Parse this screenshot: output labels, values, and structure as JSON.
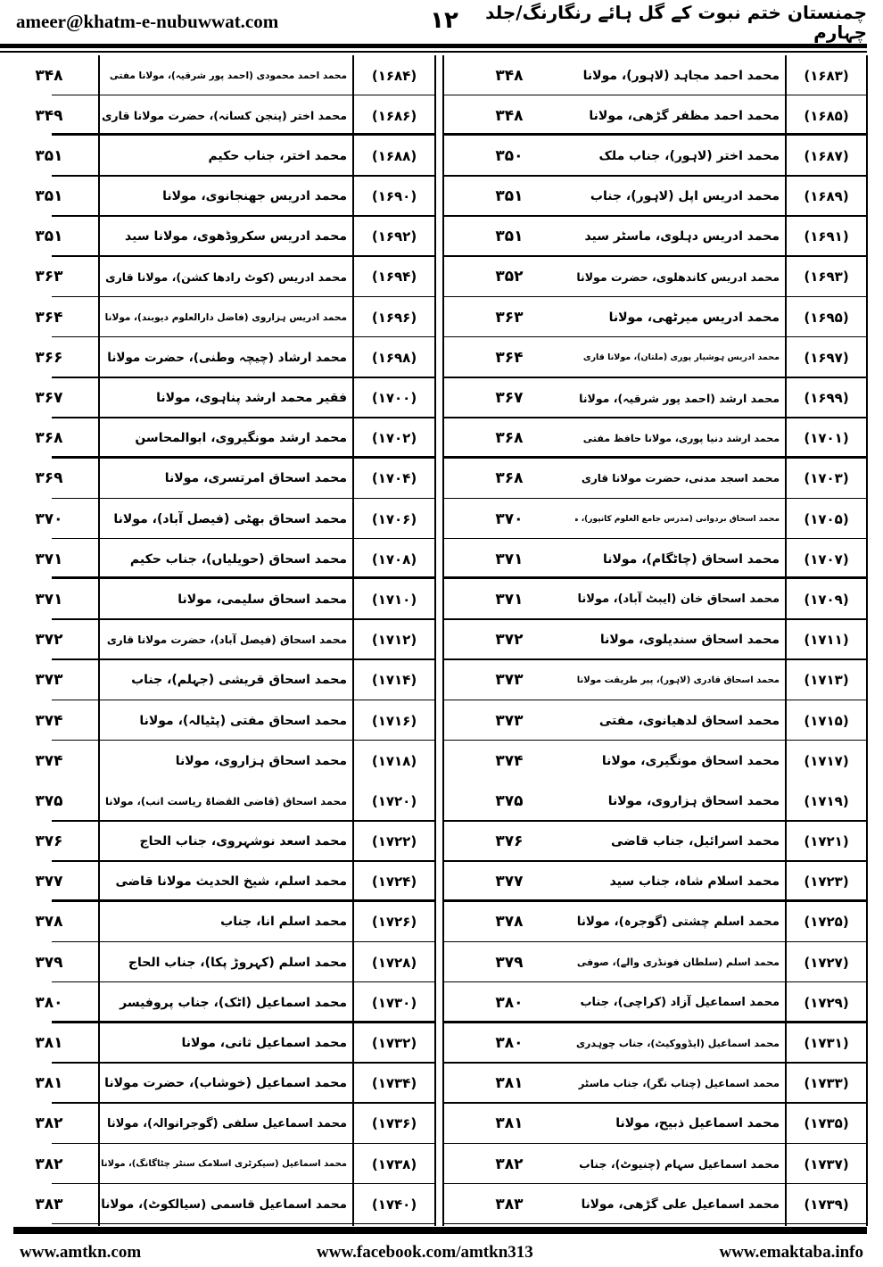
{
  "header": {
    "email": "ameer@khatm-e-nubuwwat.com",
    "page_number": "۱۲",
    "title": "چمنستان ختم نبوت کے گل ہائے رنگارنگ/جلد چہارم"
  },
  "rows": [
    {
      "right": {
        "num": "(۱۶۸۳)",
        "name": "محمد احمد مجاہد (لاہور)، مولانا",
        "page": "۳۴۸"
      },
      "left": {
        "num": "(۱۶۸۴)",
        "name": "محمد احمد محمودی (احمد پور شرقیہ)، مولانا مفتی",
        "page": "۳۴۸"
      }
    },
    {
      "right": {
        "num": "(۱۶۸۵)",
        "name": "محمد احمد مظفر گڑھی، مولانا",
        "page": "۳۴۸"
      },
      "left": {
        "num": "(۱۶۸۶)",
        "name": "محمد اختر (پنجن کسانہ)، حضرت مولانا قاری",
        "page": "۳۴۹"
      }
    },
    {
      "right": {
        "num": "(۱۶۸۷)",
        "name": "محمد اختر (لاہور)، جناب ملک",
        "page": "۳۵۰"
      },
      "left": {
        "num": "(۱۶۸۸)",
        "name": "محمد اختر، جناب حکیم",
        "page": "۳۵۱"
      }
    },
    {
      "right": {
        "num": "(۱۶۸۹)",
        "name": "محمد ادریس اپل (لاہور)، جناب",
        "page": "۳۵۱"
      },
      "left": {
        "num": "(۱۶۹۰)",
        "name": "محمد ادریس جھنجانوی، مولانا",
        "page": "۳۵۱"
      }
    },
    {
      "right": {
        "num": "(۱۶۹۱)",
        "name": "محمد ادریس دہلوی، ماسٹر سید",
        "page": "۳۵۱"
      },
      "left": {
        "num": "(۱۶۹۲)",
        "name": "محمد ادریس سکروڈھوی، مولانا سید",
        "page": "۳۵۱"
      }
    },
    {
      "right": {
        "num": "(۱۶۹۳)",
        "name": "محمد ادریس کاندھلوی، حضرت مولانا",
        "page": "۳۵۲"
      },
      "left": {
        "num": "(۱۶۹۴)",
        "name": "محمد ادریس (کوٹ رادھا کشن)، مولانا قاری",
        "page": "۳۶۳"
      }
    },
    {
      "right": {
        "num": "(۱۶۹۵)",
        "name": "محمد ادریس میرٹھی، مولانا",
        "page": "۳۶۳"
      },
      "left": {
        "num": "(۱۶۹۶)",
        "name": "محمد ادریس ہزاروی (فاضل دارالعلوم دیوبند)، مولانا",
        "page": "۳۶۴"
      }
    },
    {
      "right": {
        "num": "(۱۶۹۷)",
        "name": "محمد ادریس ہوشیار پوری (ملتان)، مولانا قاری",
        "page": "۳۶۴"
      },
      "left": {
        "num": "(۱۶۹۸)",
        "name": "محمد ارشاد (چیچہ وطنی)، حضرت مولانا",
        "page": "۳۶۶"
      }
    },
    {
      "right": {
        "num": "(۱۶۹۹)",
        "name": "محمد ارشد (احمد پور شرقیہ)، مولانا",
        "page": "۳۶۷"
      },
      "left": {
        "num": "(۱۷۰۰)",
        "name": "فقیر محمد ارشد پناہوی، مولانا",
        "page": "۳۶۷"
      }
    },
    {
      "right": {
        "num": "(۱۷۰۱)",
        "name": "محمد ارشد دنیا پوری، مولانا حافظ مفتی",
        "page": "۳۶۸"
      },
      "left": {
        "num": "(۱۷۰۲)",
        "name": "محمد ارشد مونگیروی، ابوالمحاسن",
        "page": "۳۶۸"
      }
    },
    {
      "right": {
        "num": "(۱۷۰۳)",
        "name": "محمد اسجد مدنی، حضرت مولانا قاری",
        "page": "۳۶۸"
      },
      "left": {
        "num": "(۱۷۰۴)",
        "name": "محمد اسحاق امرتسری، مولانا",
        "page": "۳۶۹"
      }
    },
    {
      "right": {
        "num": "(۱۷۰۵)",
        "name": "محمد اسحاق بردوانی (مدرس جامع العلوم کانپور)، مولانا",
        "page": "۳۷۰"
      },
      "left": {
        "num": "(۱۷۰۶)",
        "name": "محمد اسحاق بھٹی (فیصل آباد)، مولانا",
        "page": "۳۷۰"
      }
    },
    {
      "right": {
        "num": "(۱۷۰۷)",
        "name": "محمد اسحاق (چاٹگام)، مولانا",
        "page": "۳۷۱"
      },
      "left": {
        "num": "(۱۷۰۸)",
        "name": "محمد اسحاق (حویلیاں)، جناب حکیم",
        "page": "۳۷۱"
      }
    },
    {
      "right": {
        "num": "(۱۷۰۹)",
        "name": "محمد اسحاق خان (ایبٹ آباد)، مولانا",
        "page": "۳۷۱"
      },
      "left": {
        "num": "(۱۷۱۰)",
        "name": "محمد اسحاق سلیمی، مولانا",
        "page": "۳۷۱"
      }
    },
    {
      "right": {
        "num": "(۱۷۱۱)",
        "name": "محمد اسحاق سندیلوی، مولانا",
        "page": "۳۷۲"
      },
      "left": {
        "num": "(۱۷۱۲)",
        "name": "محمد اسحاق (فیصل آباد)، حضرت مولانا قاری",
        "page": "۳۷۲"
      }
    },
    {
      "right": {
        "num": "(۱۷۱۳)",
        "name": "محمد اسحاق قادری (لاہور)، پیر طریقت مولانا",
        "page": "۳۷۳"
      },
      "left": {
        "num": "(۱۷۱۴)",
        "name": "محمد اسحاق قریشی (جہلم)، جناب",
        "page": "۳۷۳"
      }
    },
    {
      "right": {
        "num": "(۱۷۱۵)",
        "name": "محمد اسحاق لدھیانوی، مفتی",
        "page": "۳۷۳"
      },
      "left": {
        "num": "(۱۷۱۶)",
        "name": "محمد اسحاق مفتی (پٹیالہ)، مولانا",
        "page": "۳۷۴"
      }
    },
    {
      "right": {
        "num": "(۱۷۱۷)",
        "name": "محمد اسحاق مونگیری، مولانا",
        "page": "۳۷۴"
      },
      "left": {
        "num": "(۱۷۱۸)",
        "name": "محمد اسحاق ہزاروی، مولانا",
        "page": "۳۷۴"
      }
    },
    {
      "right": {
        "num": "(۱۷۱۹)",
        "name": "محمد اسحاق ہزاروی، مولانا",
        "page": "۳۷۵"
      },
      "left": {
        "num": "(۱۷۲۰)",
        "name": "محمد اسحاق (قاضی القضاۃ ریاست انب)، مولانا",
        "page": "۳۷۵"
      }
    },
    {
      "right": {
        "num": "(۱۷۲۱)",
        "name": "محمد اسرائیل، جناب قاضی",
        "page": "۳۷۶"
      },
      "left": {
        "num": "(۱۷۲۲)",
        "name": "محمد اسعد نوشہروی، جناب الحاج",
        "page": "۳۷۶"
      }
    },
    {
      "right": {
        "num": "(۱۷۲۳)",
        "name": "محمد اسلام شاہ، جناب سید",
        "page": "۳۷۷"
      },
      "left": {
        "num": "(۱۷۲۴)",
        "name": "محمد اسلم، شیخ الحدیث مولانا قاضی",
        "page": "۳۷۷"
      }
    },
    {
      "right": {
        "num": "(۱۷۲۵)",
        "name": "محمد اسلم چشتی (گوجرہ)، مولانا",
        "page": "۳۷۸"
      },
      "left": {
        "num": "(۱۷۲۶)",
        "name": "محمد اسلم انا، جناب",
        "page": "۳۷۸"
      }
    },
    {
      "right": {
        "num": "(۱۷۲۷)",
        "name": "محمد اسلم (سلطان فونڈری والے)، صوفی",
        "page": "۳۷۹"
      },
      "left": {
        "num": "(۱۷۲۸)",
        "name": "محمد اسلم (کہروڑ پکا)، جناب الحاج",
        "page": "۳۷۹"
      }
    },
    {
      "right": {
        "num": "(۱۷۲۹)",
        "name": "محمد اسماعیل آزاد (کراچی)، جناب",
        "page": "۳۸۰"
      },
      "left": {
        "num": "(۱۷۳۰)",
        "name": "محمد اسماعیل (اٹک)، جناب پروفیسر",
        "page": "۳۸۰"
      }
    },
    {
      "right": {
        "num": "(۱۷۳۱)",
        "name": "محمد اسماعیل (ایڈووکیٹ)، جناب چوہدری",
        "page": "۳۸۰"
      },
      "left": {
        "num": "(۱۷۳۲)",
        "name": "محمد اسماعیل ثانی، مولانا",
        "page": "۳۸۱"
      }
    },
    {
      "right": {
        "num": "(۱۷۳۳)",
        "name": "محمد اسماعیل (چناب نگر)، جناب ماسٹر",
        "page": "۳۸۱"
      },
      "left": {
        "num": "(۱۷۳۴)",
        "name": "محمد اسماعیل (خوشاب)، حضرت مولانا",
        "page": "۳۸۱"
      }
    },
    {
      "right": {
        "num": "(۱۷۳۵)",
        "name": "محمد اسماعیل ذبیح، مولانا",
        "page": "۳۸۱"
      },
      "left": {
        "num": "(۱۷۳۶)",
        "name": "محمد اسماعیل سلفی (گوجرانوالہ)، مولانا",
        "page": "۳۸۲"
      }
    },
    {
      "right": {
        "num": "(۱۷۳۷)",
        "name": "محمد اسماعیل سہام (چنیوٹ)، جناب",
        "page": "۳۸۲"
      },
      "left": {
        "num": "(۱۷۳۸)",
        "name": "محمد اسماعیل (سیکرٹری اسلامک سنٹر چٹاگانگ)، مولانا",
        "page": "۳۸۲"
      }
    },
    {
      "right": {
        "num": "(۱۷۳۹)",
        "name": "محمد اسماعیل علی گڑھی، مولانا",
        "page": "۳۸۳"
      },
      "left": {
        "num": "(۱۷۴۰)",
        "name": "محمد اسماعیل قاسمی (سیالکوٹ)، مولانا",
        "page": "۳۸۳"
      }
    }
  ],
  "footer": {
    "left": "www.amtkn.com",
    "center": "www.facebook.com/amtkn313",
    "right": "www.emaktaba.info"
  }
}
